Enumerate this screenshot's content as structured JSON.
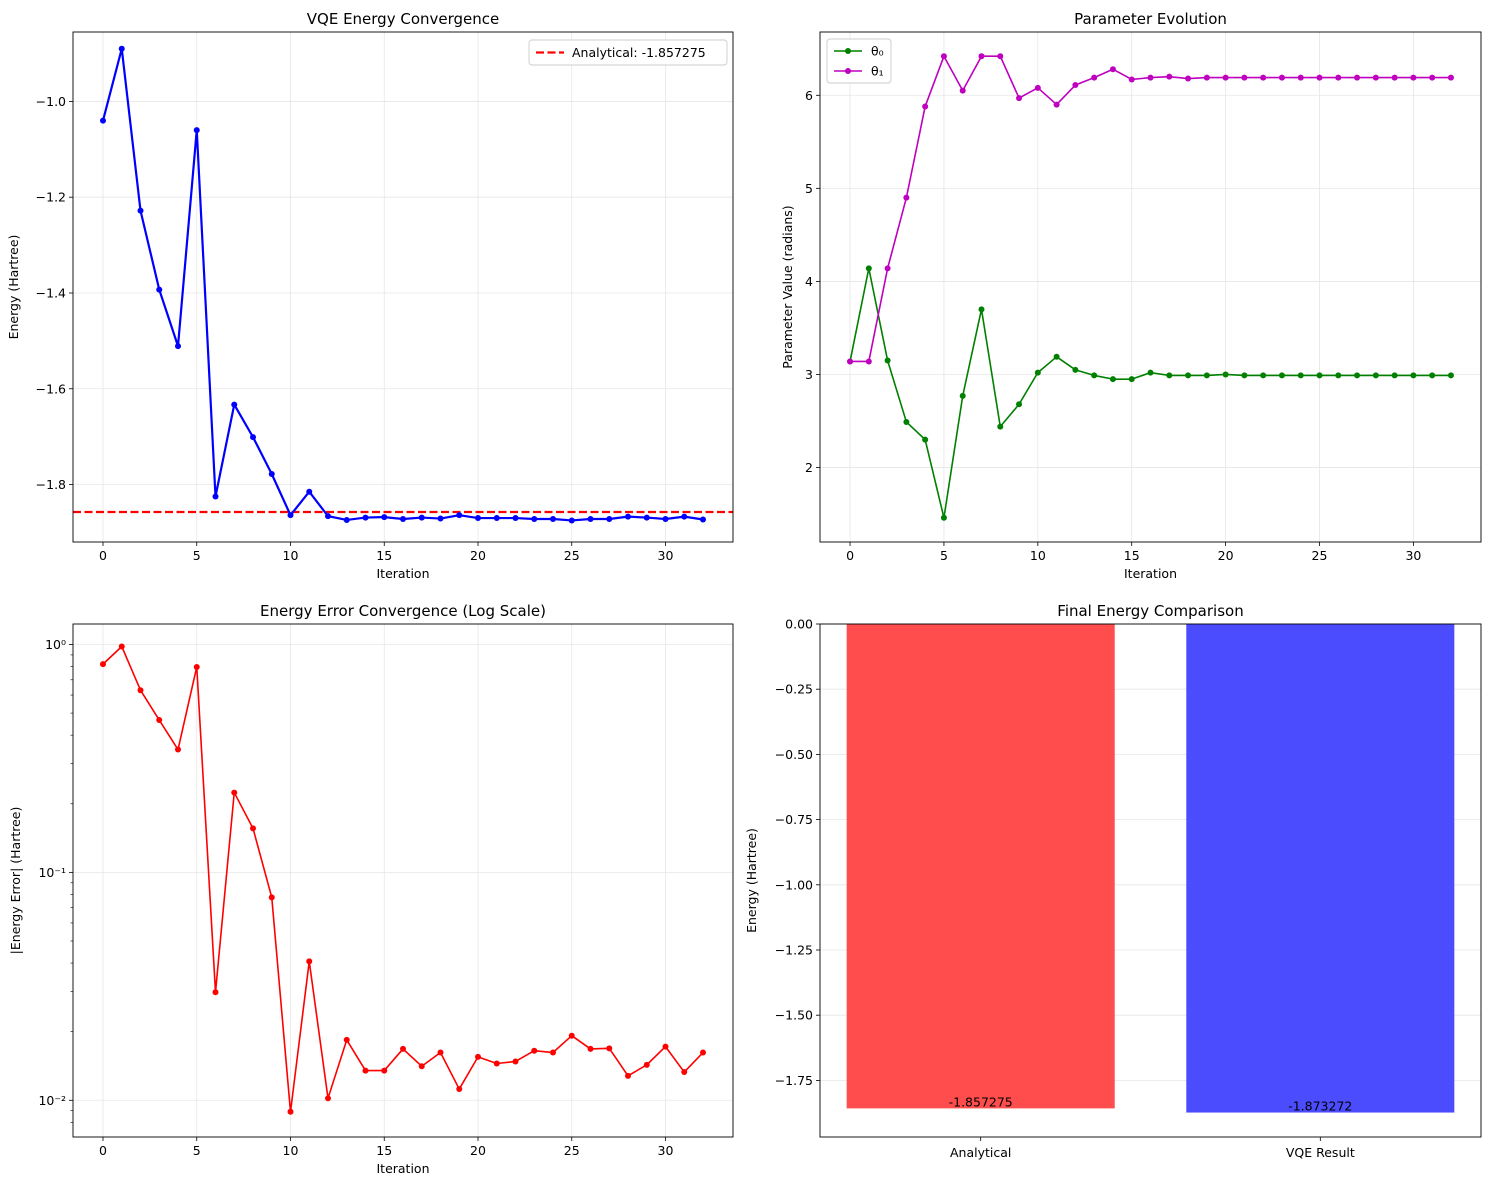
{
  "chart_data": [
    {
      "type": "line",
      "title": "VQE Energy Convergence",
      "xlabel": "Iteration",
      "ylabel": "Energy (Hartree)",
      "xlim": [
        -1.6,
        33.6
      ],
      "ylim": [
        -1.92,
        -0.855
      ],
      "xticks": [
        0,
        5,
        10,
        15,
        20,
        25,
        30
      ],
      "yticks": [
        -1.8,
        -1.6,
        -1.4,
        -1.2,
        -1.0
      ],
      "ytick_labels": [
        "−1.8",
        "−1.6",
        "−1.4",
        "−1.2",
        "−1.0"
      ],
      "grid": true,
      "legend_position": "upper right",
      "series": [
        {
          "name": "",
          "color": "#0000ff",
          "x": [
            0,
            1,
            2,
            3,
            4,
            5,
            6,
            7,
            8,
            9,
            10,
            11,
            12,
            13,
            14,
            15,
            16,
            17,
            18,
            19,
            20,
            21,
            22,
            23,
            24,
            25,
            26,
            27,
            28,
            29,
            30,
            31,
            32
          ],
          "values": [
            -1.04,
            -0.89,
            -1.228,
            -1.393,
            -1.511,
            -1.06,
            -1.825,
            -1.633,
            -1.701,
            -1.778,
            -1.864,
            -1.815,
            -1.866,
            -1.874,
            -1.869,
            -1.868,
            -1.872,
            -1.869,
            -1.871,
            -1.864,
            -1.87,
            -1.87,
            -1.87,
            -1.872,
            -1.872,
            -1.875,
            -1.872,
            -1.872,
            -1.867,
            -1.869,
            -1.872,
            -1.867,
            -1.873
          ]
        }
      ],
      "hlines": [
        {
          "name": "Analytical: -1.857275",
          "y": -1.857275,
          "color": "#ff0000"
        }
      ]
    },
    {
      "type": "line",
      "title": "Parameter Evolution",
      "xlabel": "Iteration",
      "ylabel": "Parameter Value (radians)",
      "xlim": [
        -1.6,
        33.6
      ],
      "ylim": [
        1.2,
        6.68
      ],
      "xticks": [
        0,
        5,
        10,
        15,
        20,
        25,
        30
      ],
      "yticks": [
        2,
        3,
        4,
        5,
        6
      ],
      "ytick_labels": [
        "2",
        "3",
        "4",
        "5",
        "6"
      ],
      "grid": true,
      "legend_position": "upper left",
      "series": [
        {
          "name": "θ₀",
          "color": "#008000",
          "x": [
            0,
            1,
            2,
            3,
            4,
            5,
            6,
            7,
            8,
            9,
            10,
            11,
            12,
            13,
            14,
            15,
            16,
            17,
            18,
            19,
            20,
            21,
            22,
            23,
            24,
            25,
            26,
            27,
            28,
            29,
            30,
            31,
            32
          ],
          "values": [
            3.14,
            4.14,
            3.15,
            2.49,
            2.3,
            1.46,
            2.77,
            3.7,
            2.44,
            2.68,
            3.02,
            3.19,
            3.05,
            2.99,
            2.95,
            2.95,
            3.02,
            2.99,
            2.99,
            2.99,
            3.0,
            2.99,
            2.99,
            2.99,
            2.99,
            2.99,
            2.99,
            2.99,
            2.99,
            2.99,
            2.99,
            2.99,
            2.99
          ]
        },
        {
          "name": "θ₁",
          "color": "#bf00bf",
          "x": [
            0,
            1,
            2,
            3,
            4,
            5,
            6,
            7,
            8,
            9,
            10,
            11,
            12,
            13,
            14,
            15,
            16,
            17,
            18,
            19,
            20,
            21,
            22,
            23,
            24,
            25,
            26,
            27,
            28,
            29,
            30,
            31,
            32
          ],
          "values": [
            3.14,
            3.14,
            4.14,
            4.9,
            5.88,
            6.42,
            6.05,
            6.42,
            6.42,
            5.97,
            6.08,
            5.9,
            6.11,
            6.19,
            6.28,
            6.17,
            6.19,
            6.2,
            6.18,
            6.19,
            6.19,
            6.19,
            6.19,
            6.19,
            6.19,
            6.19,
            6.19,
            6.19,
            6.19,
            6.19,
            6.19,
            6.19,
            6.19
          ]
        }
      ]
    },
    {
      "type": "line",
      "title": "Energy Error Convergence (Log Scale)",
      "xlabel": "Iteration",
      "ylabel": "|Energy Error| (Hartree)",
      "xlim": [
        -1.6,
        33.6
      ],
      "ylim": [
        0.0069,
        1.23
      ],
      "yscale": "log",
      "xticks": [
        0,
        5,
        10,
        15,
        20,
        25,
        30
      ],
      "yticks": [
        0.01,
        0.1,
        1
      ],
      "ytick_labels": [
        "10⁻²",
        "10⁻¹",
        "10⁰"
      ],
      "grid": true,
      "series": [
        {
          "name": "",
          "color": "#ff0000",
          "x": [
            0,
            1,
            2,
            3,
            4,
            5,
            6,
            7,
            8,
            9,
            10,
            11,
            12,
            13,
            14,
            15,
            16,
            17,
            18,
            19,
            20,
            21,
            22,
            23,
            24,
            25,
            26,
            27,
            28,
            29,
            30,
            31,
            32
          ],
          "values": [
            0.82,
            0.98,
            0.63,
            0.466,
            0.346,
            0.797,
            0.0298,
            0.224,
            0.156,
            0.0777,
            0.0089,
            0.0407,
            0.0102,
            0.0184,
            0.0135,
            0.0135,
            0.0168,
            0.0141,
            0.0162,
            0.0112,
            0.0155,
            0.0145,
            0.0148,
            0.0165,
            0.0162,
            0.0192,
            0.0168,
            0.0169,
            0.0128,
            0.0143,
            0.0172,
            0.0133,
            0.0162
          ]
        }
      ]
    },
    {
      "type": "bar",
      "title": "Final Energy Comparison",
      "xlabel": "",
      "ylabel": "Energy (Hartree)",
      "ylim": [
        -1.967,
        0.0
      ],
      "yticks": [
        0.0,
        -0.25,
        -0.5,
        -0.75,
        -1.0,
        -1.25,
        -1.5,
        -1.75
      ],
      "ytick_labels": [
        "0.00",
        "−0.25",
        "−0.50",
        "−0.75",
        "−1.00",
        "−1.25",
        "−1.50",
        "−1.75"
      ],
      "grid": true,
      "categories": [
        "Analytical",
        "VQE Result"
      ],
      "values": [
        -1.857275,
        -1.873272
      ],
      "colors": [
        "#ff4c4c",
        "#4c4cff"
      ],
      "data_labels": [
        "-1.857275",
        "-1.873272"
      ]
    }
  ]
}
